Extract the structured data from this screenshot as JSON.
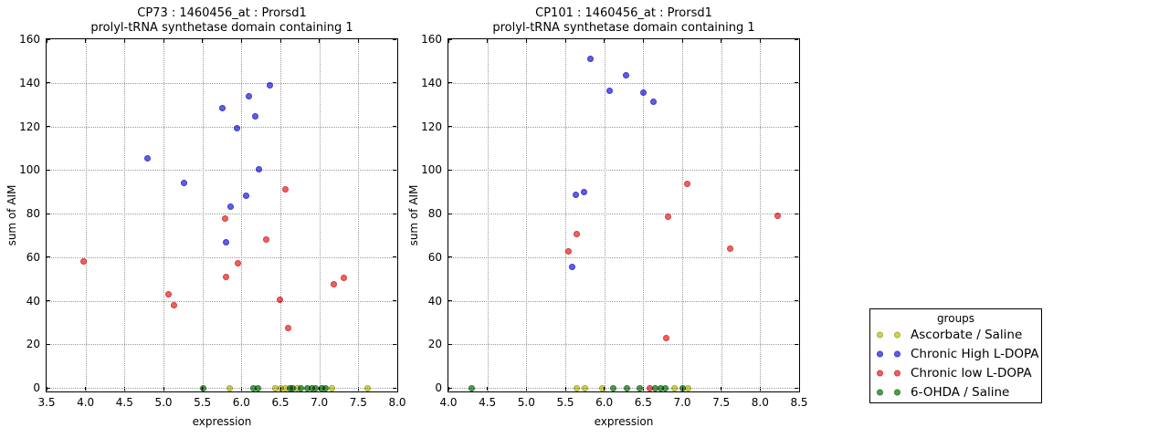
{
  "figure": {
    "background": "#ffffff"
  },
  "legend": {
    "title": "groups",
    "entries": [
      {
        "label": "Ascorbate / Saline",
        "color": "#d2d24f",
        "edge": "#a9a932"
      },
      {
        "label": "Chronic High L-DOPA",
        "color": "#5e5ee8",
        "edge": "#3a3ac8"
      },
      {
        "label": "Chronic low L-DOPA",
        "color": "#f16060",
        "edge": "#d23c3c"
      },
      {
        "label": "6-OHDA / Saline",
        "color": "#4da04d",
        "edge": "#327a32"
      }
    ]
  },
  "chart_data": [
    {
      "type": "scatter",
      "title_line1": "CP73 : 1460456_at : Prorsd1",
      "title_line2": "prolyl-tRNA synthetase domain containing 1",
      "xlabel": "expression",
      "ylabel": "sum of AIM",
      "xlim": [
        3.5,
        8.0
      ],
      "ylim": [
        0,
        160
      ],
      "grid": "dotted",
      "xticks": [
        3.5,
        4.0,
        4.5,
        5.0,
        5.5,
        6.0,
        6.5,
        7.0,
        7.5,
        8.0
      ],
      "xtick_labels": [
        "3.5",
        "4.0",
        "4.5",
        "5.0",
        "5.5",
        "6.0",
        "6.5",
        "7.0",
        "7.5",
        "8.0"
      ],
      "yticks": [
        0,
        20,
        40,
        60,
        80,
        100,
        120,
        140,
        160
      ],
      "ytick_labels": [
        "0",
        "20",
        "40",
        "60",
        "80",
        "100",
        "120",
        "140",
        "160"
      ],
      "series": [
        {
          "name": "Ascorbate / Saline",
          "group": 0,
          "points": [
            [
              5.85,
              0
            ],
            [
              6.43,
              0
            ],
            [
              6.51,
              0
            ],
            [
              6.57,
              0
            ],
            [
              6.72,
              0
            ],
            [
              7.16,
              0
            ],
            [
              7.62,
              0
            ]
          ]
        },
        {
          "name": "Chronic High L-DOPA",
          "group": 1,
          "points": [
            [
              4.8,
              105.5
            ],
            [
              5.26,
              94
            ],
            [
              5.76,
              128.5
            ],
            [
              5.8,
              67
            ],
            [
              5.86,
              83
            ],
            [
              5.94,
              119
            ],
            [
              6.06,
              88
            ],
            [
              6.09,
              134
            ],
            [
              6.18,
              124.5
            ],
            [
              6.22,
              100.5
            ],
            [
              6.37,
              139
            ]
          ]
        },
        {
          "name": "Chronic low L-DOPA",
          "group": 2,
          "points": [
            [
              3.97,
              58
            ],
            [
              5.06,
              43
            ],
            [
              5.14,
              38
            ],
            [
              5.79,
              77.5
            ],
            [
              5.8,
              51
            ],
            [
              5.96,
              57
            ],
            [
              6.32,
              68
            ],
            [
              6.49,
              40.5
            ],
            [
              6.57,
              91
            ],
            [
              6.6,
              27.5
            ],
            [
              7.18,
              47.5
            ],
            [
              7.32,
              50.5
            ]
          ]
        },
        {
          "name": "6-OHDA / Saline",
          "group": 3,
          "points": [
            [
              5.51,
              0
            ],
            [
              6.15,
              0
            ],
            [
              6.21,
              0
            ],
            [
              6.62,
              0
            ],
            [
              6.66,
              0
            ],
            [
              6.76,
              0
            ],
            [
              6.85,
              0
            ],
            [
              6.9,
              0
            ],
            [
              6.95,
              0
            ],
            [
              7.03,
              0
            ],
            [
              7.08,
              0
            ]
          ]
        }
      ]
    },
    {
      "type": "scatter",
      "title_line1": "CP101 : 1460456_at : Prorsd1",
      "title_line2": "prolyl-tRNA synthetase domain containing 1",
      "xlabel": "expression",
      "ylabel": "sum of AIM",
      "xlim": [
        4.0,
        8.5
      ],
      "ylim": [
        0,
        160
      ],
      "grid": "dotted",
      "xticks": [
        4.0,
        4.5,
        5.0,
        5.5,
        6.0,
        6.5,
        7.0,
        7.5,
        8.0,
        8.5
      ],
      "xtick_labels": [
        "4.0",
        "4.5",
        "5.0",
        "5.5",
        "6.0",
        "6.5",
        "7.0",
        "7.5",
        "8.0",
        "8.5"
      ],
      "yticks": [
        0,
        20,
        40,
        60,
        80,
        100,
        120,
        140,
        160
      ],
      "ytick_labels": [
        "0",
        "20",
        "40",
        "60",
        "80",
        "100",
        "120",
        "140",
        "160"
      ],
      "series": [
        {
          "name": "Ascorbate / Saline",
          "group": 0,
          "points": [
            [
              5.65,
              0
            ],
            [
              5.75,
              0
            ],
            [
              5.97,
              0
            ],
            [
              6.9,
              0
            ],
            [
              7.08,
              0
            ]
          ]
        },
        {
          "name": "Chronic High L-DOPA",
          "group": 1,
          "points": [
            [
              5.59,
              55.5
            ],
            [
              5.64,
              88.5
            ],
            [
              5.74,
              90
            ],
            [
              5.82,
              151
            ],
            [
              6.07,
              136.5
            ],
            [
              6.28,
              143.5
            ],
            [
              6.5,
              135.5
            ],
            [
              6.63,
              131.5
            ]
          ]
        },
        {
          "name": "Chronic low L-DOPA",
          "group": 2,
          "points": [
            [
              5.54,
              62.5
            ],
            [
              5.65,
              70.5
            ],
            [
              6.58,
              0
            ],
            [
              6.79,
              23
            ],
            [
              6.82,
              78.5
            ],
            [
              7.07,
              93.5
            ],
            [
              7.61,
              64
            ],
            [
              8.22,
              79
            ]
          ]
        },
        {
          "name": "6-OHDA / Saline",
          "group": 3,
          "points": [
            [
              4.3,
              0
            ],
            [
              6.11,
              0
            ],
            [
              6.29,
              0
            ],
            [
              6.46,
              0
            ],
            [
              6.66,
              0
            ],
            [
              6.72,
              0
            ],
            [
              6.78,
              0
            ],
            [
              7.0,
              0
            ]
          ]
        }
      ]
    }
  ]
}
